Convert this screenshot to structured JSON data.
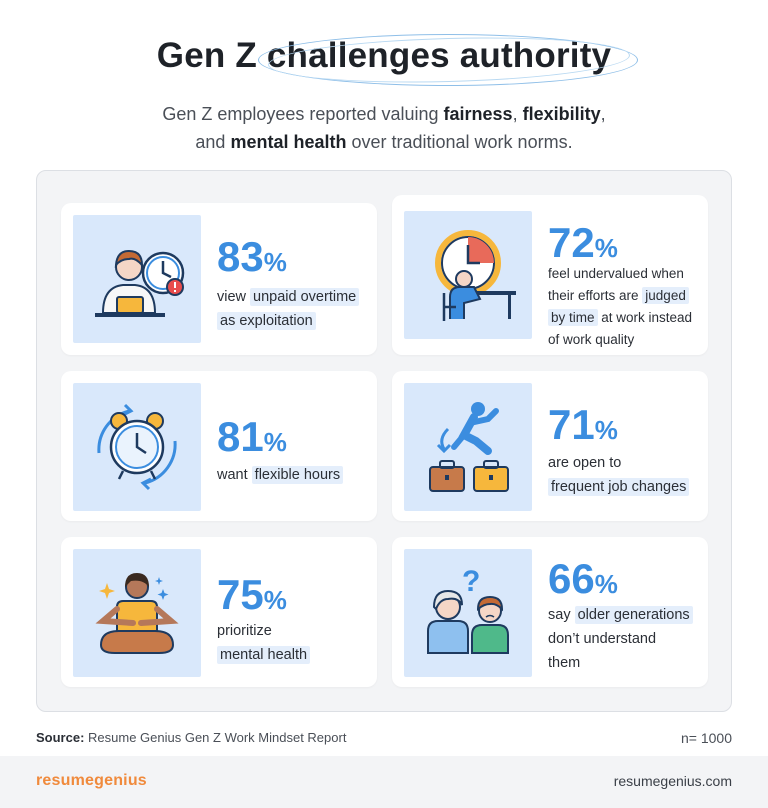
{
  "header": {
    "title": "Gen Z challenges authority",
    "subtitle": {
      "p1": "Gen Z employees reported valuing ",
      "b1": "fairness",
      "p2": ", ",
      "b2": "flexibility",
      "p3": ",",
      "p4": "and ",
      "b3": "mental health",
      "p5": " over traditional work norms."
    }
  },
  "stats": [
    {
      "value": "83",
      "unit": "%",
      "pre": "view ",
      "hl": "unpaid overtime",
      "hl2": "as exploitation",
      "icon": "overtime-worker-icon"
    },
    {
      "value": "72",
      "unit": "%",
      "l1": "feel undervalued when",
      "l2a": "their efforts are ",
      "l2hl": "judged",
      "l3hl": "by time",
      "l3b": " at work instead",
      "l4": "of work quality",
      "icon": "clock-desk-worker-icon"
    },
    {
      "value": "81",
      "unit": "%",
      "pre": "want ",
      "hl": "flexible hours",
      "icon": "alarm-clock-icon"
    },
    {
      "value": "71",
      "unit": "%",
      "l1": "are open to",
      "hl": "frequent job changes",
      "icon": "jumping-briefcases-icon"
    },
    {
      "value": "75",
      "unit": "%",
      "l1": "prioritize",
      "hl": "mental health",
      "icon": "meditation-icon"
    },
    {
      "value": "66",
      "unit": "%",
      "pre": "say ",
      "hl": "older generations",
      "l2": "don’t understand",
      "l3": "them",
      "icon": "generations-question-icon"
    }
  ],
  "footer": {
    "source_label": "Source:",
    "source_text": " Resume Genius Gen Z Work Mindset Report",
    "n": "n= 1000",
    "brand_a": "resume",
    "brand_b": "genius",
    "site": "resumegenius.com"
  },
  "colors": {
    "accent": "#3b8ddf",
    "brand": "#f08a3c",
    "icon_bg": "#d9e8fb",
    "highlight": "#e4eefb"
  }
}
